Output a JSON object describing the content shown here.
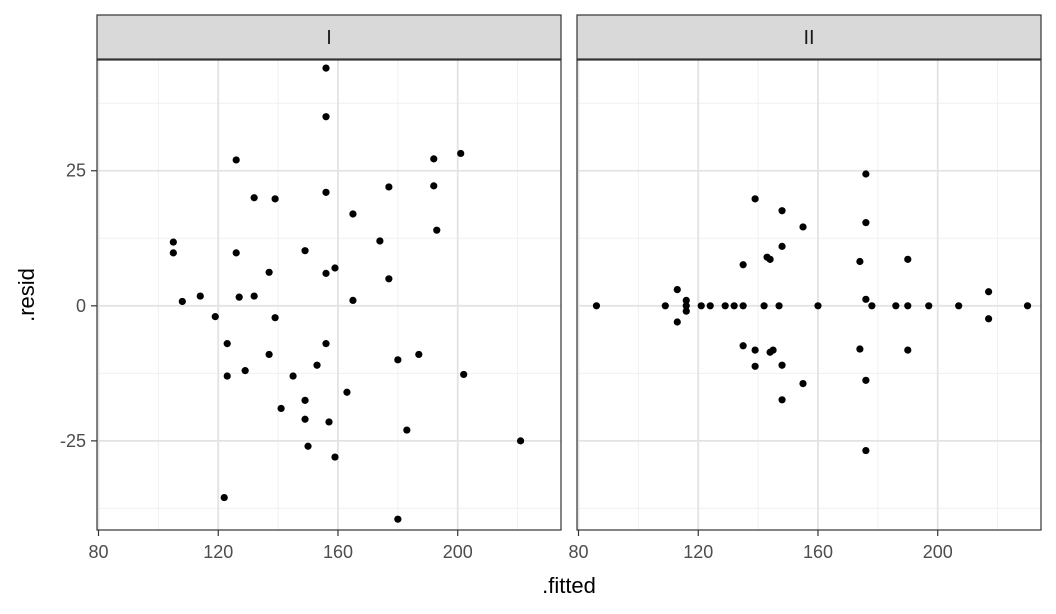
{
  "chart_data": {
    "type": "scatter",
    "xlabel": ".fitted",
    "ylabel": ".resid",
    "xlim": [
      79.5,
      234.5
    ],
    "ylim": [
      -41.5,
      45.5
    ],
    "x_ticks": [
      80,
      120,
      160,
      200
    ],
    "y_ticks": [
      -25,
      0,
      25
    ],
    "grid": true,
    "facets": [
      {
        "strip": "I",
        "points": [
          [
            105,
            11.8
          ],
          [
            105,
            9.8
          ],
          [
            108,
            0.8
          ],
          [
            114,
            1.8
          ],
          [
            119,
            -2
          ],
          [
            122,
            -35.5
          ],
          [
            123,
            -7
          ],
          [
            123,
            -13
          ],
          [
            126,
            27
          ],
          [
            126,
            9.8
          ],
          [
            127,
            1.6
          ],
          [
            129,
            -12
          ],
          [
            132,
            20
          ],
          [
            132,
            1.8
          ],
          [
            137,
            6.2
          ],
          [
            137,
            -9
          ],
          [
            139,
            19.8
          ],
          [
            139,
            -2.2
          ],
          [
            141,
            -19
          ],
          [
            145,
            -13
          ],
          [
            149,
            10.2
          ],
          [
            149,
            -17.5
          ],
          [
            149,
            -21
          ],
          [
            150,
            -26
          ],
          [
            153,
            -11
          ],
          [
            156,
            44
          ],
          [
            156,
            35
          ],
          [
            156,
            21
          ],
          [
            156,
            6
          ],
          [
            156,
            -7
          ],
          [
            157,
            -21.5
          ],
          [
            159,
            7
          ],
          [
            159,
            -28
          ],
          [
            163,
            -16
          ],
          [
            165,
            17
          ],
          [
            165,
            1
          ],
          [
            174,
            12
          ],
          [
            177,
            22
          ],
          [
            177,
            5
          ],
          [
            180,
            -10
          ],
          [
            180,
            -39.5
          ],
          [
            183,
            -23
          ],
          [
            187,
            -9
          ],
          [
            192,
            27.2
          ],
          [
            192,
            22.2
          ],
          [
            193,
            14
          ],
          [
            201,
            28.2
          ],
          [
            202,
            -12.7
          ],
          [
            221,
            -25
          ]
        ]
      },
      {
        "strip": "II",
        "points": [
          [
            86,
            0
          ],
          [
            109,
            0
          ],
          [
            113,
            3
          ],
          [
            113,
            -3
          ],
          [
            116,
            1
          ],
          [
            116,
            0
          ],
          [
            116,
            -1
          ],
          [
            121,
            0
          ],
          [
            124,
            0
          ],
          [
            129,
            0
          ],
          [
            132,
            0
          ],
          [
            135,
            0
          ],
          [
            135,
            7.6
          ],
          [
            135,
            -7.4
          ],
          [
            139,
            19.8
          ],
          [
            139,
            -8.2
          ],
          [
            139,
            -11.2
          ],
          [
            142,
            0
          ],
          [
            143,
            9
          ],
          [
            144,
            8.6
          ],
          [
            144,
            -8.6
          ],
          [
            145,
            -8.2
          ],
          [
            147,
            0
          ],
          [
            148,
            11
          ],
          [
            148,
            -11
          ],
          [
            148,
            17.6
          ],
          [
            148,
            -17.4
          ],
          [
            155,
            14.6
          ],
          [
            155,
            -14.4
          ],
          [
            160,
            0
          ],
          [
            174,
            8.2
          ],
          [
            174,
            -8
          ],
          [
            176,
            24.4
          ],
          [
            176,
            15.4
          ],
          [
            176,
            1.2
          ],
          [
            176,
            -13.8
          ],
          [
            176,
            -26.8
          ],
          [
            178,
            0
          ],
          [
            186,
            0
          ],
          [
            190,
            8.6
          ],
          [
            190,
            0
          ],
          [
            190,
            -8.2
          ],
          [
            197,
            0
          ],
          [
            207,
            0
          ],
          [
            217,
            2.6
          ],
          [
            217,
            -2.4
          ],
          [
            230,
            0
          ]
        ]
      }
    ]
  }
}
